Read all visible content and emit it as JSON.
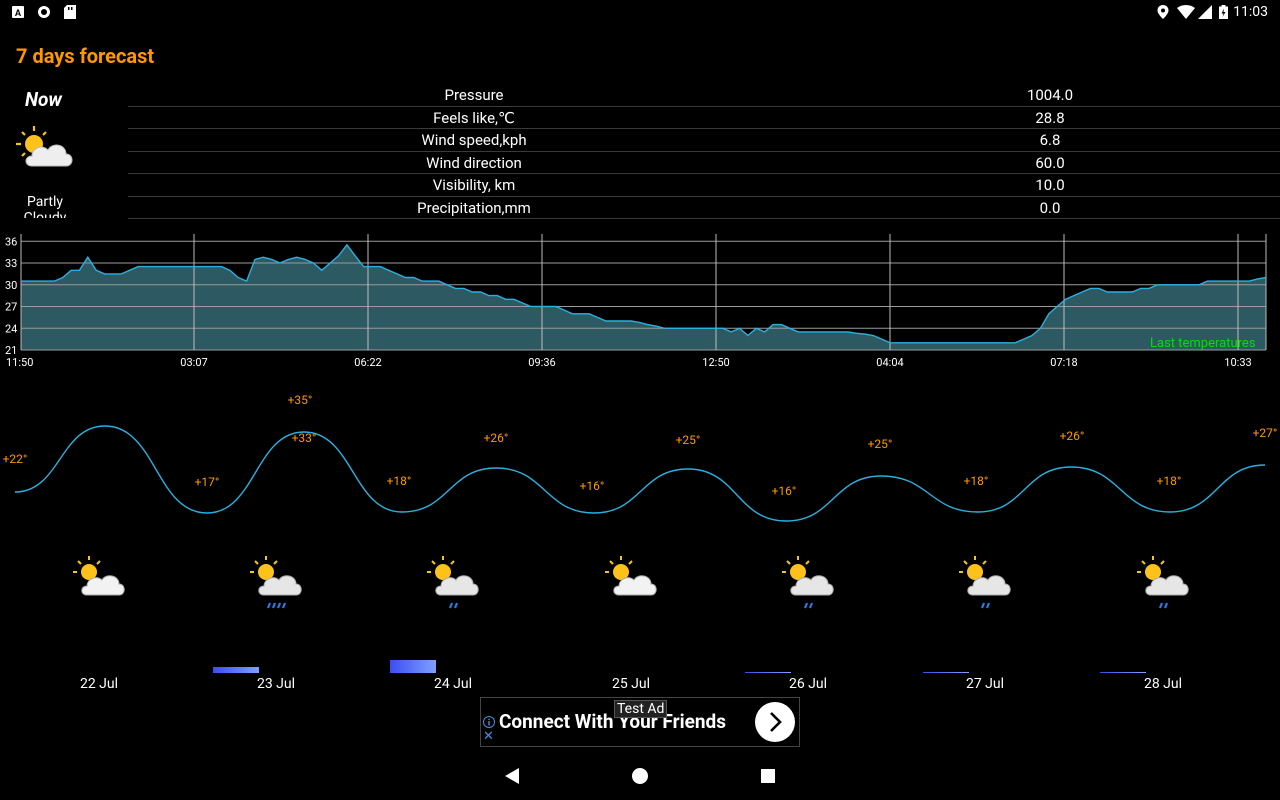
{
  "status_bar": {
    "time": "11:03",
    "left_icons": [
      "a-icon",
      "circle-icon",
      "sd-card-icon"
    ],
    "right_icons": [
      "location-icon",
      "wifi-icon",
      "signal-icon",
      "battery-icon"
    ]
  },
  "title": "7 days forecast",
  "now": {
    "label": "Now",
    "condition": "Partly Cloudy",
    "icon": "partly-cloudy-icon"
  },
  "details": [
    {
      "label": "Pressure",
      "value": "1004.0"
    },
    {
      "label": "Feels like,℃",
      "value": "28.8"
    },
    {
      "label": "Wind speed,kph",
      "value": "6.8"
    },
    {
      "label": "Wind direction",
      "value": "60.0"
    },
    {
      "label": "Visibility, km",
      "value": "10.0"
    },
    {
      "label": "Precipitation,mm",
      "value": "0.0"
    }
  ],
  "chart_data": {
    "type": "area",
    "title": "",
    "legend_text": "Last temperatures",
    "y_ticks": [
      "21",
      "24",
      "27",
      "30",
      "33",
      "36"
    ],
    "ylim": [
      21,
      37
    ],
    "x_ticks": [
      "11:50",
      "03:07",
      "06:22",
      "09:36",
      "12:50",
      "04:04",
      "07:18",
      "10:33"
    ],
    "series": [
      {
        "values": [
          30.5,
          30.5,
          30.5,
          30.5,
          30.5,
          31,
          32,
          32,
          33.8,
          32,
          31.5,
          31.5,
          31.5,
          32,
          32.5,
          32.5,
          32.5,
          32.5,
          32.5,
          32.5,
          32.5,
          32.5,
          32.5,
          32.5,
          32.5,
          32,
          31,
          30.5,
          33.5,
          33.8,
          33.5,
          33,
          33.5,
          33.8,
          33.5,
          33,
          32,
          33,
          34,
          35.5,
          34,
          32.5,
          32.5,
          32.5,
          32,
          31.5,
          31,
          31,
          30.5,
          30.5,
          30.5,
          30,
          29.5,
          29.5,
          29,
          29,
          28.5,
          28.5,
          28,
          28,
          27.5,
          27,
          27,
          27,
          27,
          26.5,
          26,
          26,
          26,
          25.5,
          25,
          25,
          25,
          25,
          24.8,
          24.5,
          24.3,
          24,
          24,
          24,
          24,
          24,
          24,
          24,
          24,
          23.5,
          24,
          23,
          24,
          23.5,
          24.5,
          24.5,
          24,
          23.5,
          23.5,
          23.5,
          23.5,
          23.5,
          23.5,
          23.5,
          23.3,
          23.2,
          23,
          22.5,
          22,
          22,
          22,
          22,
          22,
          22,
          22,
          22,
          22,
          22,
          22,
          22,
          22,
          22,
          22,
          22,
          22.5,
          23,
          24,
          26,
          27,
          28,
          28.5,
          29,
          29.5,
          29.5,
          29,
          29,
          29,
          29,
          29.5,
          29.5,
          30,
          30,
          30,
          30,
          30,
          30,
          30.5,
          30.5,
          30.5,
          30.5,
          30.5,
          30.5,
          30.8,
          31
        ]
      }
    ]
  },
  "forecast": {
    "chart_data": {
      "type": "line",
      "series": [
        {
          "points": [
            {
              "label": "+22°",
              "value": 22
            },
            {
              "label": "+35°",
              "value": 35
            },
            {
              "label": "+17°",
              "value": 17
            },
            {
              "label": "+33°",
              "value": 33
            },
            {
              "label": "+18°",
              "value": 18
            },
            {
              "label": "+26°",
              "value": 26
            },
            {
              "label": "+16°",
              "value": 16
            },
            {
              "label": "+25°",
              "value": 25
            },
            {
              "label": "+16°",
              "value": 16
            },
            {
              "label": "+25°",
              "value": 25
            },
            {
              "label": "+18°",
              "value": 18
            },
            {
              "label": "+26°",
              "value": 26
            },
            {
              "label": "+18°",
              "value": 18
            },
            {
              "label": "+27°",
              "value": 27
            }
          ]
        }
      ]
    },
    "days": [
      {
        "date": "22 Jul",
        "icon": "partly-cloudy-icon",
        "rain": 0
      },
      {
        "date": "23 Jul",
        "icon": "partly-cloudy-heavy-rain-icon",
        "rain": 0.5
      },
      {
        "date": "24 Jul",
        "icon": "partly-cloudy-rain-icon",
        "rain": 1.0
      },
      {
        "date": "25 Jul",
        "icon": "partly-cloudy-icon",
        "rain": 0
      },
      {
        "date": "26 Jul",
        "icon": "partly-cloudy-rain-icon",
        "rain": 0.05
      },
      {
        "date": "27 Jul",
        "icon": "partly-cloudy-rain-icon",
        "rain": 0.05
      },
      {
        "date": "28 Jul",
        "icon": "partly-cloudy-rain-icon",
        "rain": 0.05
      }
    ]
  },
  "ad": {
    "tag": "Test Ad",
    "text": "Connect With Your Friends",
    "close": "✕"
  },
  "colors": {
    "accent": "#ff9800",
    "line": "#2ab0e0",
    "area": "#2d5a62",
    "legend": "#00e000"
  }
}
